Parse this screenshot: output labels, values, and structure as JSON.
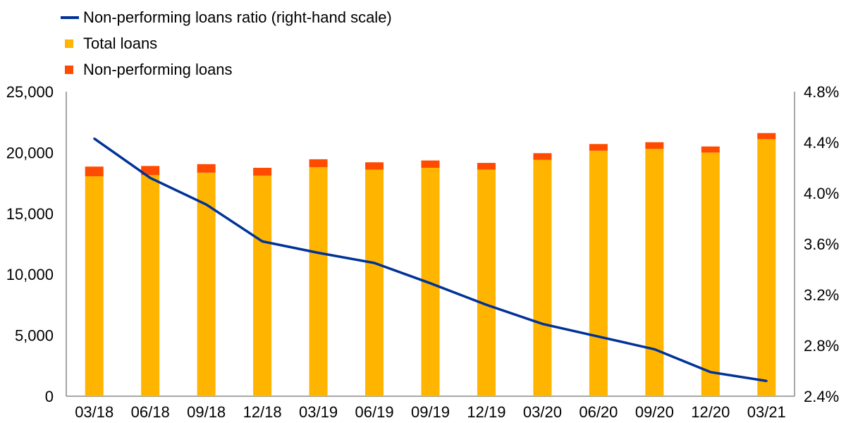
{
  "chart_data": {
    "type": "bar",
    "stacked": true,
    "categories": [
      "03/18",
      "06/18",
      "09/18",
      "12/18",
      "03/19",
      "06/19",
      "09/19",
      "12/19",
      "03/20",
      "06/20",
      "09/20",
      "12/20",
      "03/21"
    ],
    "series": [
      {
        "name": "Total loans",
        "kind": "bar",
        "axis": "left",
        "color": "#ffb400",
        "values": [
          18050,
          18150,
          18350,
          18100,
          18800,
          18600,
          18750,
          18600,
          19400,
          20150,
          20300,
          20000,
          21100
        ]
      },
      {
        "name": "Non-performing loans",
        "kind": "bar",
        "axis": "left",
        "color": "#ff4b00",
        "values": [
          800,
          750,
          700,
          650,
          650,
          600,
          600,
          550,
          550,
          550,
          550,
          500,
          500
        ]
      },
      {
        "name": "Non-performing loans ratio (right-hand scale)",
        "kind": "line",
        "axis": "right",
        "color": "#003299",
        "values": [
          4.43,
          4.12,
          3.91,
          3.62,
          3.53,
          3.45,
          3.29,
          3.12,
          2.97,
          2.87,
          2.77,
          2.59,
          2.52
        ]
      }
    ],
    "left_axis": {
      "min": 0,
      "max": 25000,
      "ticks": [
        0,
        5000,
        10000,
        15000,
        20000,
        25000
      ],
      "tick_labels": [
        "0",
        "5,000",
        "10,000",
        "15,000",
        "20,000",
        "25,000"
      ]
    },
    "right_axis": {
      "min": 2.4,
      "max": 4.8,
      "ticks": [
        2.4,
        2.8,
        3.2,
        3.6,
        4.0,
        4.4,
        4.8
      ],
      "tick_labels": [
        "2.4%",
        "2.8%",
        "3.2%",
        "3.6%",
        "4.0%",
        "4.4%",
        "4.8%"
      ]
    },
    "legend_position": "top-left",
    "grid": false
  }
}
